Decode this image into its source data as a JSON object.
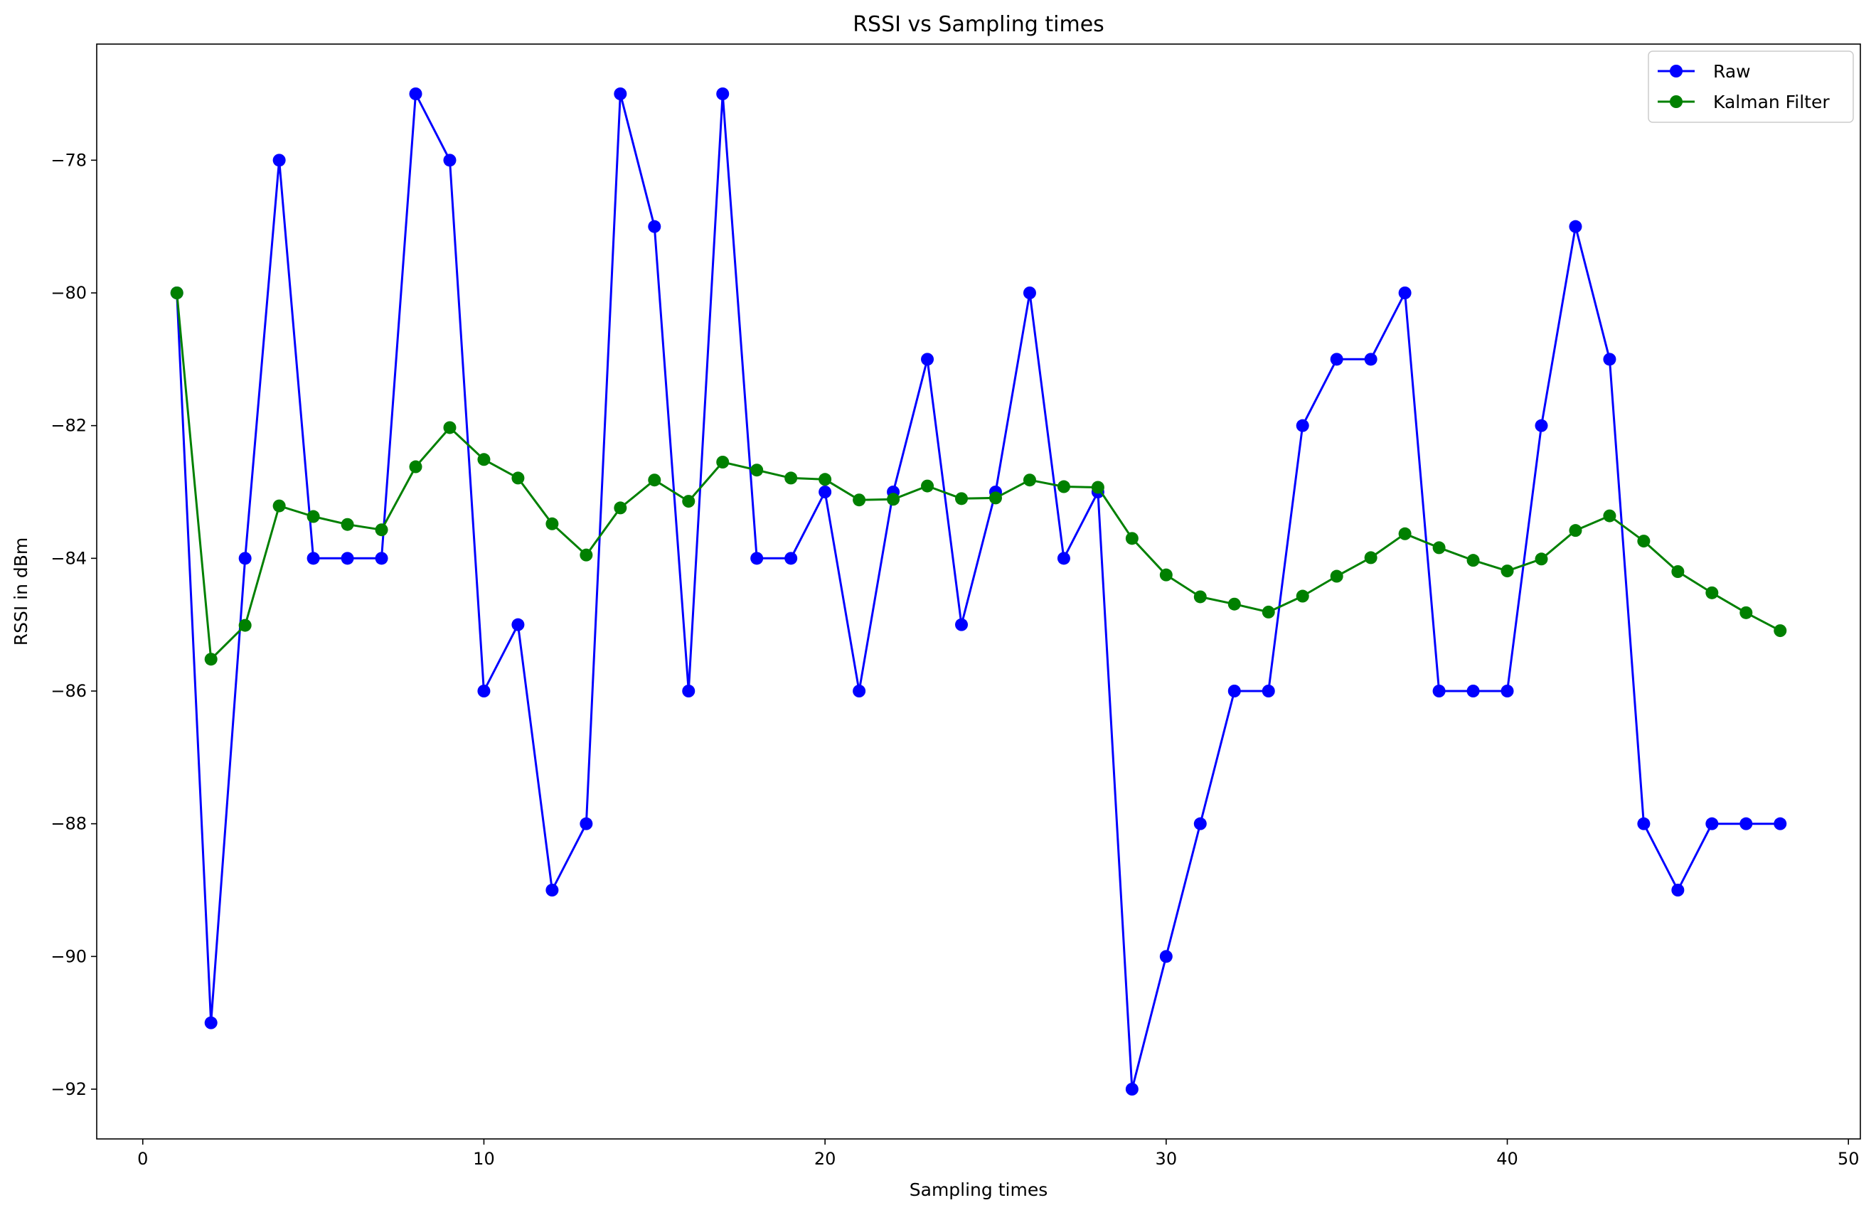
{
  "chart_data": {
    "type": "line",
    "title": "RSSI vs Sampling times",
    "xlabel": "Sampling times",
    "ylabel": "RSSI in dBm",
    "xlim": [
      -1.35,
      50.35
    ],
    "ylim": [
      -92.75,
      -76.25
    ],
    "xticks": [
      0,
      10,
      20,
      30,
      40,
      50
    ],
    "yticks": [
      -78,
      -80,
      -82,
      -84,
      -86,
      -88,
      -90,
      -92
    ],
    "xtick_labels": [
      "0",
      "10",
      "20",
      "30",
      "40",
      "50"
    ],
    "ytick_labels": [
      "−78",
      "−80",
      "−82",
      "−84",
      "−86",
      "−88",
      "−90",
      "−92"
    ],
    "grid": false,
    "legend_position": "top-right",
    "x": [
      1,
      2,
      3,
      4,
      5,
      6,
      7,
      8,
      9,
      10,
      11,
      12,
      13,
      14,
      15,
      16,
      17,
      18,
      19,
      20,
      21,
      22,
      23,
      24,
      25,
      26,
      27,
      28,
      29,
      30,
      31,
      32,
      33,
      34,
      35,
      36,
      37,
      38,
      39,
      40,
      41,
      42,
      43,
      44,
      45,
      46,
      47,
      48
    ],
    "series": [
      {
        "name": "Raw",
        "color": "#0000ff",
        "values": [
          -80,
          -91,
          -84,
          -78,
          -84,
          -84,
          -84,
          -77,
          -78,
          -86,
          -85,
          -89,
          -88,
          -77,
          -79,
          -86,
          -77,
          -84,
          -84,
          -83,
          -86,
          -83,
          -81,
          -85,
          -83,
          -80,
          -84,
          -83,
          -92,
          -90,
          -88,
          -86,
          -86,
          -82,
          -81,
          -81,
          -80,
          -86,
          -86,
          -86,
          -82,
          -79,
          -81,
          -88,
          -89,
          -88,
          -88,
          -88
        ]
      },
      {
        "name": "Kalman Filter",
        "color": "#008000",
        "values": [
          -80,
          -85.52,
          -85.01,
          -83.21,
          -83.37,
          -83.49,
          -83.57,
          -82.62,
          -82.03,
          -82.51,
          -82.79,
          -83.48,
          -83.95,
          -83.24,
          -82.82,
          -83.14,
          -82.55,
          -82.67,
          -82.79,
          -82.81,
          -83.12,
          -83.11,
          -82.91,
          -83.1,
          -83.09,
          -82.82,
          -82.92,
          -82.93,
          -83.7,
          -84.25,
          -84.58,
          -84.69,
          -84.81,
          -84.57,
          -84.27,
          -83.99,
          -83.63,
          -83.84,
          -84.03,
          -84.19,
          -84.01,
          -83.58,
          -83.36,
          -83.74,
          -84.2,
          -84.52,
          -84.82,
          -85.09
        ]
      }
    ]
  }
}
